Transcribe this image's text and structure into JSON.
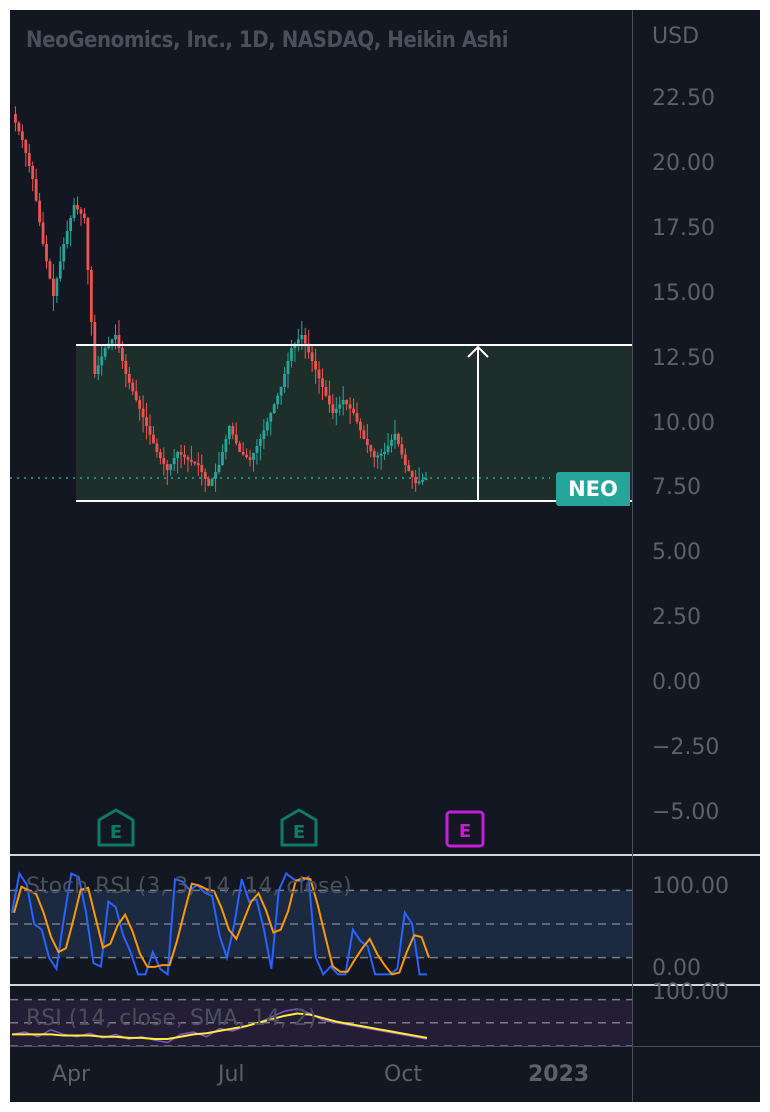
{
  "header": {
    "title": "NeoGenomics, Inc., 1D, NASDAQ, Heikin Ashi",
    "currency": "USD"
  },
  "price_axis": {
    "ticks": [
      "22.50",
      "20.00",
      "17.50",
      "15.00",
      "12.50",
      "10.00",
      "7.50",
      "5.00",
      "2.50",
      "0.00",
      "−2.50",
      "−5.00"
    ]
  },
  "symbol_badge": {
    "label": "NEO",
    "color": "#26a69a",
    "last_price": 7.5
  },
  "earnings_markers": [
    {
      "label": "E",
      "state": "past",
      "color": "#0e7a68"
    },
    {
      "label": "E",
      "state": "past",
      "color": "#0e7a68"
    },
    {
      "label": "E",
      "state": "upcoming",
      "color": "#c41ed6"
    }
  ],
  "stoch_rsi": {
    "label": "Stoch RSI (3, 3, 14, 14, close)",
    "axis_top": "100.00",
    "axis_bottom": "0.00",
    "colors": {
      "k": "#2962ff",
      "d": "#ff9800"
    }
  },
  "rsi": {
    "label": "RSI (14, close, SMA, 14, 2)",
    "axis_top": "100.00",
    "colors": {
      "rsi": "#7e57c2",
      "sma": "#ffeb3b"
    }
  },
  "time_axis": {
    "labels": [
      "Apr",
      "Jul",
      "Oct",
      "2023"
    ]
  },
  "range_box": {
    "top_price": 13.0,
    "bottom_price": 7.0,
    "fill": "#1e2e2a",
    "border": "#ffffff"
  },
  "chart_data": {
    "type": "candlestick",
    "title": "NeoGenomics, Inc., 1D, NASDAQ, Heikin Ashi",
    "xlabel": "",
    "ylabel": "USD",
    "ylim": [
      -6.0,
      25.0
    ],
    "x_ticks": [
      "Apr",
      "Jul",
      "Oct",
      "2023"
    ],
    "y_ticks": [
      -5.0,
      -2.5,
      0.0,
      2.5,
      5.0,
      7.5,
      10.0,
      12.5,
      15.0,
      17.5,
      20.0,
      22.5
    ],
    "approx_closes": [
      21.5,
      20.5,
      19.0,
      16.5,
      14.5,
      16.5,
      18.0,
      17.5,
      11.5,
      12.5,
      13.0,
      11.5,
      10.5,
      9.5,
      8.5,
      7.8,
      8.5,
      8.2,
      8.0,
      7.2,
      8.0,
      9.5,
      8.5,
      8.2,
      9.0,
      10.0,
      11.0,
      12.5,
      13.0,
      12.0,
      11.0,
      10.0,
      10.5,
      10.0,
      9.0,
      8.3,
      8.5,
      9.2,
      8.0,
      7.3,
      7.5
    ],
    "annotations": [
      "Price range box 7.00 - 13.00 with upward arrow",
      "Last price 7.50 (NEO)"
    ],
    "indicators": [
      {
        "name": "Stoch RSI (3, 3, 14, 14, close)",
        "bands": [
          20,
          50,
          80
        ],
        "range": [
          0,
          100
        ]
      },
      {
        "name": "RSI (14, close, SMA, 14, 2)",
        "bands": [
          30,
          50,
          70
        ],
        "range": [
          0,
          100
        ]
      }
    ],
    "legend": "none",
    "grid": false
  }
}
